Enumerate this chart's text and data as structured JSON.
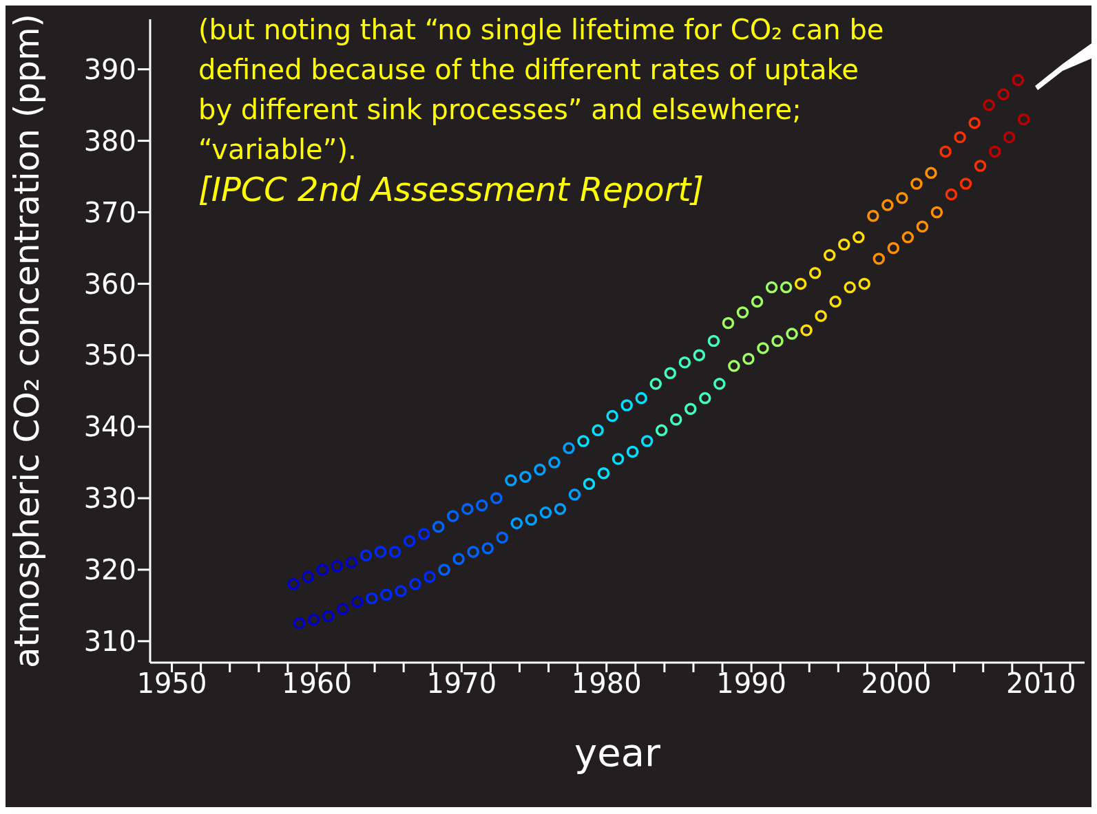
{
  "chart_data": {
    "type": "scatter",
    "xlabel": "year",
    "ylabel": "atmospheric CO₂ concentration (ppm)",
    "annotations": [
      "(but noting that “no single lifetime for CO₂ can be defined because of the different rates of uptake by different sink processes” and elsewhere; “variable”).",
      "[IPCC 2nd Assessment Report]"
    ],
    "xlim": [
      1948.5,
      2013
    ],
    "ylim": [
      307,
      397
    ],
    "xticks": [
      1950,
      {
        "value": 1952,
        "label": null
      },
      {
        "value": 1954,
        "label": null
      },
      {
        "value": 1956,
        "label": null
      },
      {
        "value": 1958,
        "label": null
      },
      1960,
      {
        "value": 1962,
        "label": null
      },
      {
        "value": 1964,
        "label": null
      },
      {
        "value": 1966,
        "label": null
      },
      {
        "value": 1968,
        "label": null
      },
      1970,
      {
        "value": 1972,
        "label": null
      },
      {
        "value": 1974,
        "label": null
      },
      {
        "value": 1976,
        "label": null
      },
      {
        "value": 1978,
        "label": null
      },
      1980,
      {
        "value": 1982,
        "label": null
      },
      {
        "value": 1984,
        "label": null
      },
      {
        "value": 1986,
        "label": null
      },
      {
        "value": 1988,
        "label": null
      },
      1990,
      {
        "value": 1992,
        "label": null
      },
      {
        "value": 1994,
        "label": null
      },
      {
        "value": 1996,
        "label": null
      },
      {
        "value": 1998,
        "label": null
      },
      2000,
      {
        "value": 2002,
        "label": null
      },
      {
        "value": 2004,
        "label": null
      },
      {
        "value": 2006,
        "label": null
      },
      {
        "value": 2008,
        "label": null
      },
      2010,
      {
        "value": 2012,
        "label": null
      }
    ],
    "yticks": [
      310,
      320,
      330,
      340,
      350,
      360,
      370,
      380,
      390
    ],
    "grid": false,
    "legend": false,
    "marker": "circle",
    "series": [
      {
        "color": "#0000c8",
        "x": [
          1958.4,
          1958.8,
          1959.4,
          1959.8,
          1960.4,
          1960.8,
          1961.4,
          1961.8,
          1962.4,
          1962.8
        ],
        "values": [
          318,
          312.5,
          319,
          313,
          320,
          313.5,
          320.5,
          314.5,
          321,
          315.5
        ]
      },
      {
        "color": "#0028ff",
        "x": [
          1963.4,
          1963.8,
          1964.4,
          1964.8,
          1965.4,
          1965.8,
          1966.4,
          1966.8,
          1967.4,
          1967.8
        ],
        "values": [
          322,
          316,
          322.5,
          316.5,
          322.5,
          317,
          324,
          318,
          325,
          319
        ]
      },
      {
        "color": "#0064ff",
        "x": [
          1968.4,
          1968.8,
          1969.4,
          1969.8,
          1970.4,
          1970.8,
          1971.4,
          1971.8,
          1972.4,
          1972.8
        ],
        "values": [
          326,
          320,
          327.5,
          321.5,
          328.5,
          322.5,
          329,
          323,
          330,
          324.5
        ]
      },
      {
        "color": "#00a0ff",
        "x": [
          1973.4,
          1973.8,
          1974.4,
          1974.8,
          1975.4,
          1975.8,
          1976.4,
          1976.8,
          1977.4,
          1977.8
        ],
        "values": [
          332.5,
          326.5,
          333,
          327,
          334,
          328,
          335,
          328.5,
          337,
          330.5
        ]
      },
      {
        "color": "#00e0ff",
        "x": [
          1978.4,
          1978.8,
          1979.4,
          1979.8,
          1980.4,
          1980.8,
          1981.4,
          1981.8,
          1982.4,
          1982.8
        ],
        "values": [
          338,
          332,
          339.5,
          333.5,
          341.5,
          335.5,
          343,
          336.5,
          344,
          338
        ]
      },
      {
        "color": "#40ffc0",
        "x": [
          1983.4,
          1983.8,
          1984.4,
          1984.8,
          1985.4,
          1985.8,
          1986.4,
          1986.8,
          1987.4,
          1987.8
        ],
        "values": [
          346,
          339.5,
          347.5,
          341,
          349,
          342.5,
          350,
          344,
          352,
          346
        ]
      },
      {
        "color": "#a0ff60",
        "x": [
          1988.4,
          1988.8,
          1989.4,
          1989.8,
          1990.4,
          1990.8,
          1991.4,
          1991.8,
          1992.4,
          1992.8
        ],
        "values": [
          354.5,
          348.5,
          356,
          349.5,
          357.5,
          351,
          359.5,
          352,
          359.5,
          353
        ]
      },
      {
        "color": "#ffe000",
        "x": [
          1993.4,
          1993.8,
          1994.4,
          1994.8,
          1995.4,
          1995.8,
          1996.4,
          1996.8,
          1997.4,
          1997.8
        ],
        "values": [
          360,
          353.5,
          361.5,
          355.5,
          364,
          357.5,
          365.5,
          359.5,
          366.5,
          360
        ]
      },
      {
        "color": "#ff9000",
        "x": [
          1998.4,
          1998.8,
          1999.4,
          1999.8,
          2000.4,
          2000.8,
          2001.4,
          2001.8,
          2002.4,
          2002.8
        ],
        "values": [
          369.5,
          363.5,
          371,
          365,
          372,
          366.5,
          374,
          368,
          375.5,
          370
        ]
      },
      {
        "color": "#ff3000",
        "x": [
          2003.4,
          2003.8,
          2004.4,
          2004.8,
          2005.4,
          2005.8
        ],
        "values": [
          378.5,
          372.5,
          380.5,
          374,
          382.5,
          376.5
        ]
      },
      {
        "color": "#c00000",
        "x": [
          2006.4,
          2006.8,
          2007.4,
          2007.8,
          2008.4,
          2008.8
        ],
        "values": [
          385,
          378.5,
          386.5,
          380.5,
          388.5,
          383
        ]
      }
    ]
  }
}
